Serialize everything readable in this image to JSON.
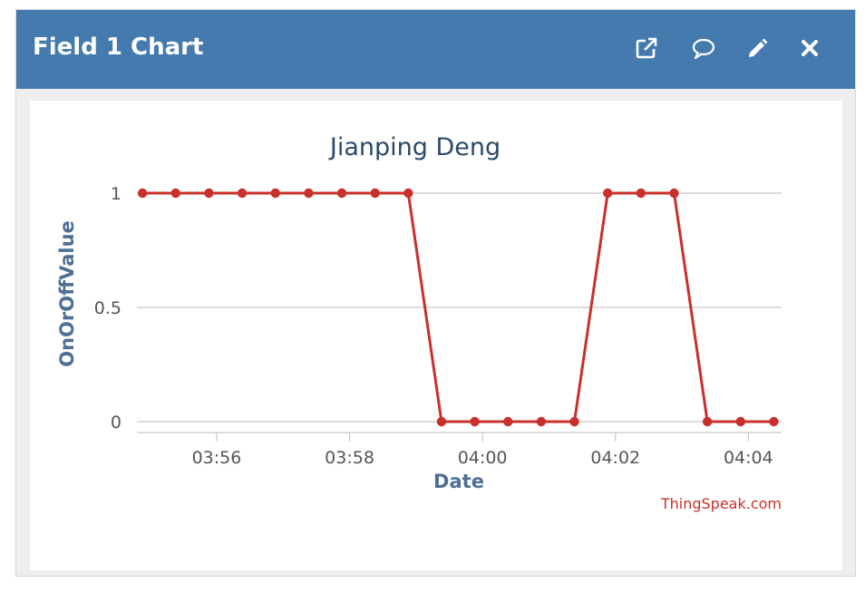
{
  "window": {
    "title": "Field 1 Chart"
  },
  "header_icons": [
    {
      "name": "external-link-icon"
    },
    {
      "name": "comment-icon"
    },
    {
      "name": "pencil-icon"
    },
    {
      "name": "close-icon"
    }
  ],
  "colors": {
    "header": "#457aae",
    "series": "#c9302c",
    "axis_label": "#4f6f95",
    "title": "#2b4a6b",
    "credit": "#c9302c"
  },
  "credit": "ThingSpeak.com",
  "chart_data": {
    "type": "line",
    "title": "Jianping Deng",
    "xlabel": "Date",
    "ylabel": "OnOrOffValue",
    "x_tick_labels": [
      "03:56",
      "03:58",
      "04:00",
      "04:02",
      "04:04"
    ],
    "y_tick_labels": [
      "0",
      "0.5",
      "1"
    ],
    "ylim": [
      0,
      1
    ],
    "xlim": [
      "03:54:48",
      "04:04:30"
    ],
    "grid": true,
    "legend": "none",
    "series": [
      {
        "x": [
          "03:54:53",
          "03:55:23",
          "03:55:53",
          "03:56:23",
          "03:56:53",
          "03:57:23",
          "03:57:53",
          "03:58:23",
          "03:58:53",
          "03:59:23",
          "03:59:53",
          "04:00:23",
          "04:00:53",
          "04:01:23",
          "04:01:53",
          "04:02:23",
          "04:02:53",
          "04:03:23",
          "04:03:53",
          "04:04:23"
        ],
        "y": [
          1,
          1,
          1,
          1,
          1,
          1,
          1,
          1,
          1,
          0,
          0,
          0,
          0,
          0,
          1,
          1,
          1,
          0,
          0,
          0
        ]
      }
    ]
  }
}
